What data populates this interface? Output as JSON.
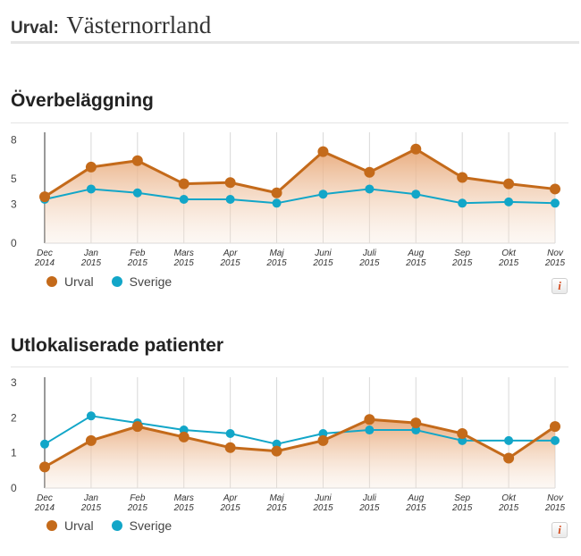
{
  "header": {
    "label": "Urval:",
    "value": "Västernorrland"
  },
  "colors": {
    "urval": "#c46a1a",
    "sverige": "#12a6c8"
  },
  "legend": {
    "urval": "Urval",
    "sverige": "Sverige"
  },
  "info_label": "i",
  "x_labels": [
    {
      "m": "Dec",
      "y": "2014"
    },
    {
      "m": "Jan",
      "y": "2015"
    },
    {
      "m": "Feb",
      "y": "2015"
    },
    {
      "m": "Mars",
      "y": "2015"
    },
    {
      "m": "Apr",
      "y": "2015"
    },
    {
      "m": "Maj",
      "y": "2015"
    },
    {
      "m": "Juni",
      "y": "2015"
    },
    {
      "m": "Juli",
      "y": "2015"
    },
    {
      "m": "Aug",
      "y": "2015"
    },
    {
      "m": "Sep",
      "y": "2015"
    },
    {
      "m": "Okt",
      "y": "2015"
    },
    {
      "m": "Nov",
      "y": "2015"
    }
  ],
  "chart_data": [
    {
      "type": "line",
      "title": "Överbeläggning",
      "yticks": [
        0,
        3,
        5,
        8
      ],
      "ylim": [
        0,
        8.6
      ],
      "x": [
        "Dec 2014",
        "Jan 2015",
        "Feb 2015",
        "Mars 2015",
        "Apr 2015",
        "Maj 2015",
        "Juni 2015",
        "Juli 2015",
        "Aug 2015",
        "Sep 2015",
        "Okt 2015",
        "Nov 2015"
      ],
      "series": [
        {
          "name": "Urval",
          "values": [
            3.6,
            5.9,
            6.4,
            4.6,
            4.7,
            3.9,
            7.1,
            5.5,
            7.3,
            5.1,
            4.6,
            4.2
          ],
          "area": true
        },
        {
          "name": "Sverige",
          "values": [
            3.4,
            4.2,
            3.9,
            3.4,
            3.4,
            3.1,
            3.8,
            4.2,
            3.8,
            3.1,
            3.2,
            3.1
          ],
          "area": false
        }
      ],
      "legend": "bottom-left",
      "grid": "vertical"
    },
    {
      "type": "line",
      "title": "Utlokaliserade patienter",
      "yticks": [
        0,
        1,
        2,
        3
      ],
      "ylim": [
        0,
        3.15
      ],
      "x": [
        "Dec 2014",
        "Jan 2015",
        "Feb 2015",
        "Mars 2015",
        "Apr 2015",
        "Maj 2015",
        "Juni 2015",
        "Juli 2015",
        "Aug 2015",
        "Sep 2015",
        "Okt 2015",
        "Nov 2015"
      ],
      "series": [
        {
          "name": "Urval",
          "values": [
            0.6,
            1.35,
            1.75,
            1.45,
            1.15,
            1.05,
            1.35,
            1.95,
            1.85,
            1.55,
            0.85,
            1.75
          ],
          "area": true
        },
        {
          "name": "Sverige",
          "values": [
            1.25,
            2.05,
            1.85,
            1.65,
            1.55,
            1.25,
            1.55,
            1.65,
            1.65,
            1.35,
            1.35,
            1.35
          ],
          "area": false
        }
      ],
      "legend": "bottom-left",
      "grid": "vertical"
    }
  ]
}
